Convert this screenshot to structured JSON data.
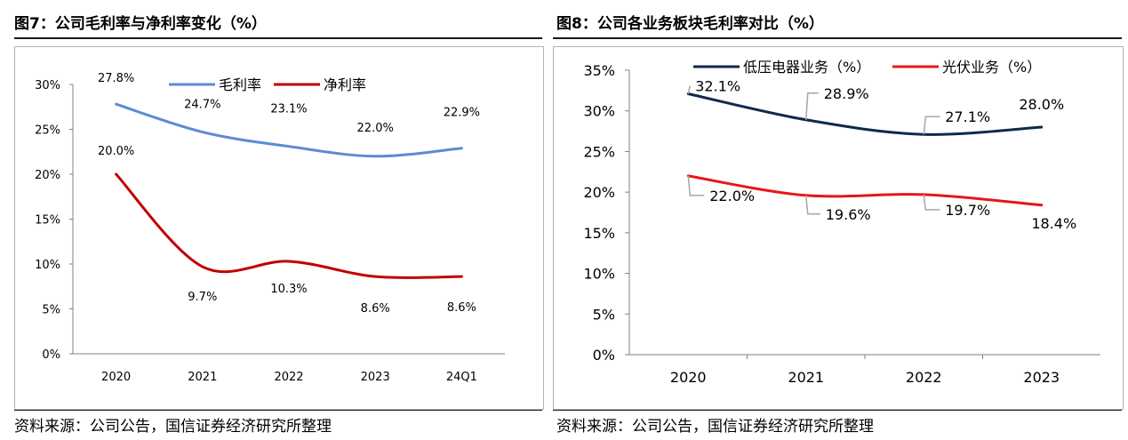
{
  "left": {
    "title": "图7：公司毛利率与净利率变化（%）",
    "source": "资料来源：公司公告，国信证券经济研究所整理",
    "chart_data": {
      "type": "line",
      "title": "图7：公司毛利率与净利率变化（%）",
      "categories": [
        "2020",
        "2021",
        "2022",
        "2023",
        "24Q1"
      ],
      "ylim": [
        0,
        30
      ],
      "yticks": [
        "0%",
        "5%",
        "10%",
        "15%",
        "20%",
        "25%",
        "30%"
      ],
      "yticks_values": [
        0,
        5,
        10,
        15,
        20,
        25,
        30
      ],
      "legend_position": "top",
      "series": [
        {
          "name": "毛利率",
          "color": "#5b8bd4",
          "values": [
            27.8,
            24.7,
            23.1,
            22.0,
            22.9
          ],
          "labels": [
            "27.8%",
            "24.7%",
            "23.1%",
            "22.0%",
            "22.9%"
          ]
        },
        {
          "name": "净利率",
          "color": "#c00000",
          "values": [
            20.0,
            9.7,
            10.3,
            8.6,
            8.6
          ],
          "labels": [
            "20.0%",
            "9.7%",
            "10.3%",
            "8.6%",
            "8.6%"
          ]
        }
      ]
    }
  },
  "right": {
    "title": "图8：公司各业务板块毛利率对比（%）",
    "source": "资料来源：公司公告，国信证券经济研究所整理",
    "chart_data": {
      "type": "line",
      "title": "图8：公司各业务板块毛利率对比（%）",
      "categories": [
        "2020",
        "2021",
        "2022",
        "2023"
      ],
      "ylim": [
        0,
        35
      ],
      "yticks": [
        "0%",
        "5%",
        "10%",
        "15%",
        "20%",
        "25%",
        "30%",
        "35%"
      ],
      "yticks_values": [
        0,
        5,
        10,
        15,
        20,
        25,
        30,
        35
      ],
      "legend_position": "top",
      "series": [
        {
          "name": "低压电器业务（%）",
          "color": "#0f2a4a",
          "values": [
            32.1,
            28.9,
            27.1,
            28.0
          ],
          "labels": [
            "32.1%",
            "28.9%",
            "27.1%",
            "28.0%"
          ]
        },
        {
          "name": "光伏业务（%）",
          "color": "#e8151b",
          "values": [
            22.0,
            19.6,
            19.7,
            18.4
          ],
          "labels": [
            "22.0%",
            "19.6%",
            "19.7%",
            "18.4%"
          ]
        }
      ]
    }
  }
}
